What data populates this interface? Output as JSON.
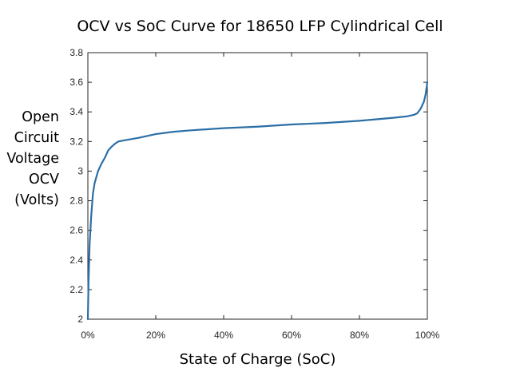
{
  "chart_data": {
    "type": "line",
    "title": "OCV vs SoC Curve for 18650 LFP Cylindrical Cell",
    "xlabel": "State of Charge (SoC)",
    "ylabel_lines": [
      "Open",
      "Circuit",
      "Voltage",
      "OCV",
      "(Volts)"
    ],
    "xlim": [
      0,
      100
    ],
    "ylim": [
      2,
      3.8
    ],
    "x_ticks": [
      0,
      20,
      40,
      60,
      80,
      100
    ],
    "x_tick_labels": [
      "0%",
      "20%",
      "40%",
      "60%",
      "80%",
      "100%"
    ],
    "y_ticks": [
      2,
      2.2,
      2.4,
      2.6,
      2.8,
      3,
      3.2,
      3.4,
      3.6,
      3.8
    ],
    "y_tick_labels": [
      "2",
      "2.2",
      "2.4",
      "2.6",
      "2.8",
      "3",
      "3.2",
      "3.4",
      "3.6",
      "3.8"
    ],
    "grid": false,
    "line_color": "#2c6fa6",
    "series": [
      {
        "x": [
          0,
          0.2,
          0.5,
          1,
          1.5,
          2,
          3,
          4,
          5,
          6,
          7,
          8,
          9,
          10,
          15,
          20,
          25,
          30,
          40,
          50,
          60,
          70,
          80,
          85,
          90,
          94,
          96,
          97,
          98,
          99,
          99.5,
          100
        ],
        "y": [
          2.0,
          2.25,
          2.5,
          2.7,
          2.85,
          2.92,
          3.0,
          3.05,
          3.09,
          3.14,
          3.165,
          3.185,
          3.2,
          3.205,
          3.225,
          3.25,
          3.265,
          3.275,
          3.29,
          3.3,
          3.315,
          3.325,
          3.34,
          3.35,
          3.36,
          3.37,
          3.38,
          3.39,
          3.42,
          3.47,
          3.52,
          3.6
        ]
      }
    ]
  }
}
